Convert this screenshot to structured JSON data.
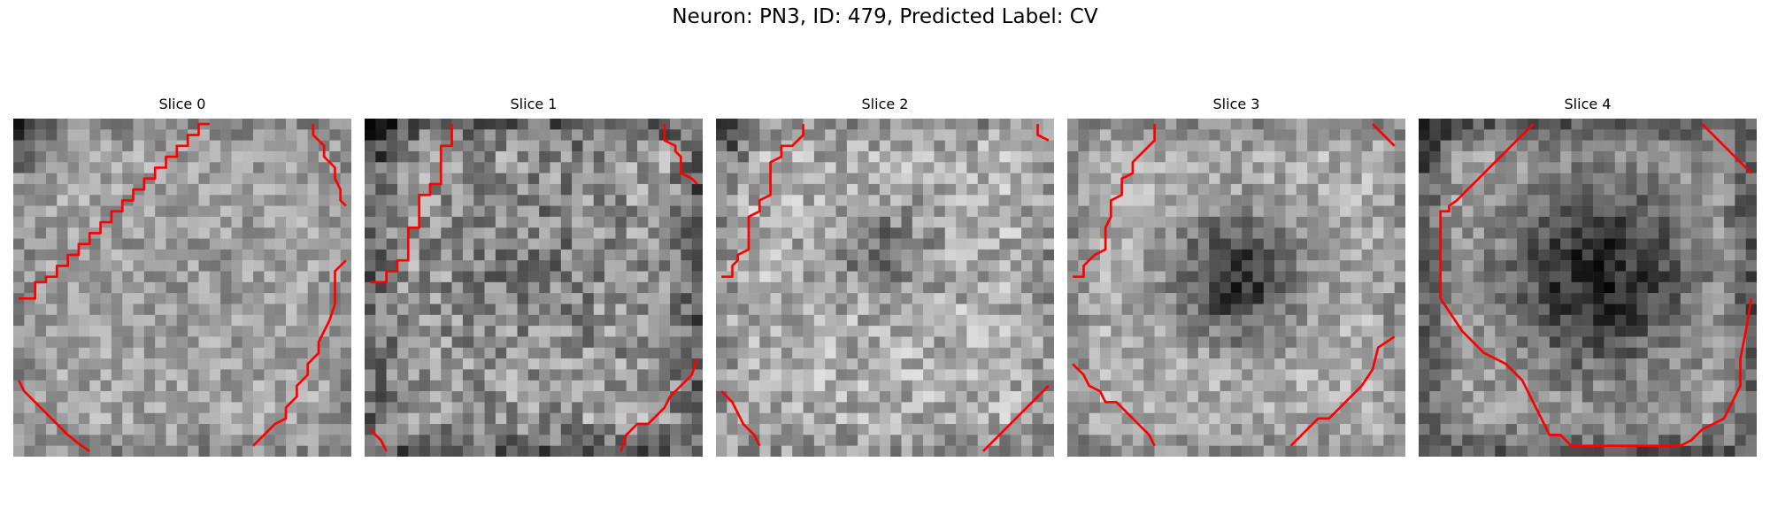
{
  "figure": {
    "title": "Neuron: PN3, ID: 479, Predicted Label: CV"
  },
  "panels": [
    {
      "title": "Slice 0"
    },
    {
      "title": "Slice 1"
    },
    {
      "title": "Slice 2"
    },
    {
      "title": "Slice 3"
    },
    {
      "title": "Slice 4"
    }
  ],
  "colors": {
    "contour": "#ff0000",
    "background": "#ffffff"
  }
}
